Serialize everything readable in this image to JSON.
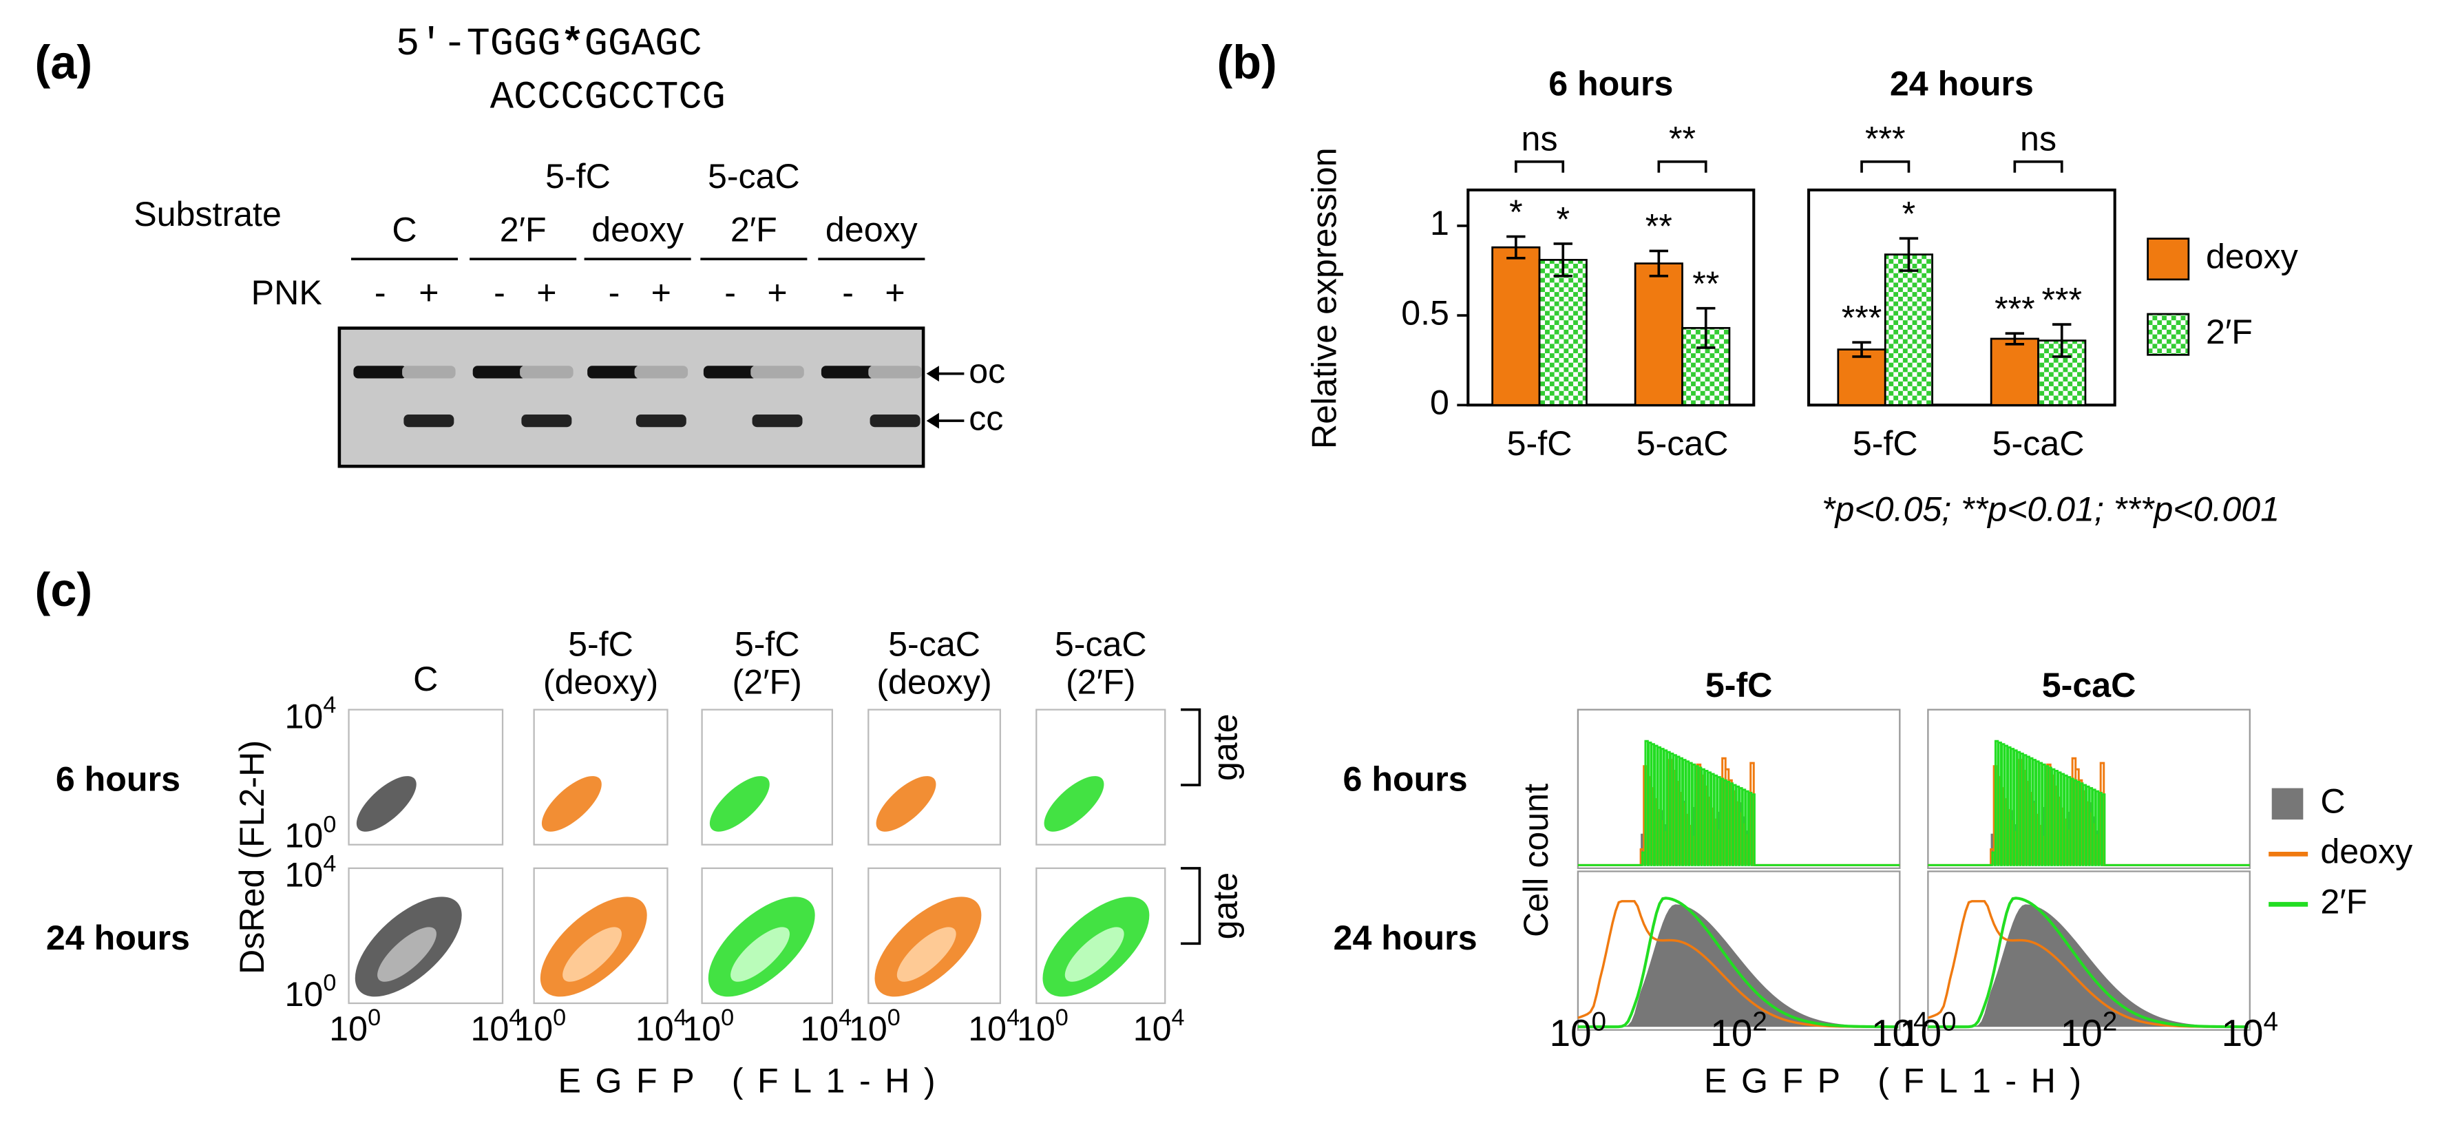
{
  "panel_a": {
    "label": "(a)",
    "seq_top": [
      "5′-TGGG",
      "*",
      "GGAGC"
    ],
    "seq_bottom": "ACCCGCCTCG",
    "group_headers": [
      "5-fC",
      "5-caC"
    ],
    "substrate": "Substrate",
    "lanes": [
      "C",
      "2′F",
      "deoxy",
      "2′F",
      "deoxy"
    ],
    "pnk": "PNK",
    "pnk_signs": [
      "-",
      "+",
      "-",
      "+",
      "-",
      "+",
      "-",
      "+",
      "-",
      "+"
    ],
    "bands": [
      "oc",
      "cc"
    ]
  },
  "panel_b": {
    "label": "(b)",
    "footnote": "*p<0.05; **p<0.01; ***p<0.001"
  },
  "chart_data": [
    {
      "type": "bar",
      "title": "6 hours",
      "y_label": "Relative expression",
      "categories": [
        "5-fC",
        "5-caC"
      ],
      "series": [
        {
          "name": "deoxy",
          "color": "#f07a10",
          "values": [
            0.88,
            0.79
          ],
          "errors": [
            0.06,
            0.07
          ],
          "significance": [
            "*",
            "**"
          ]
        },
        {
          "name": "2′F",
          "color": "#33cc33",
          "values": [
            0.81,
            0.43
          ],
          "errors": [
            0.09,
            0.11
          ],
          "significance": [
            "*",
            "**"
          ]
        }
      ],
      "comparisons": [
        "ns",
        "**"
      ],
      "ylim": [
        0,
        1.2
      ],
      "yticks": [
        0,
        0.5,
        1
      ]
    },
    {
      "type": "bar",
      "title": "24 hours",
      "categories": [
        "5-fC",
        "5-caC"
      ],
      "series": [
        {
          "name": "deoxy",
          "color": "#f07a10",
          "values": [
            0.31,
            0.37
          ],
          "errors": [
            0.04,
            0.03
          ],
          "significance": [
            "***",
            "***"
          ]
        },
        {
          "name": "2′F",
          "color": "#33cc33",
          "values": [
            0.84,
            0.36
          ],
          "errors": [
            0.09,
            0.09
          ],
          "significance": [
            "*",
            "***"
          ]
        }
      ],
      "comparisons": [
        "***",
        "ns"
      ],
      "ylim": [
        0,
        1.2
      ]
    }
  ],
  "panel_c": {
    "label": "(c)",
    "columns": [
      [
        "C"
      ],
      [
        "5-fC",
        "(deoxy)"
      ],
      [
        "5-fC",
        "(2′F)"
      ],
      [
        "5-caC",
        "(deoxy)"
      ],
      [
        "5-caC",
        "(2′F)"
      ]
    ],
    "rows": [
      "6 hours",
      "24 hours"
    ],
    "gate": "gate",
    "y_label": "DsRed (FL2-H)",
    "x_label": "EGFP (FL1-H)",
    "scatter_ticks": [
      {
        "base": "10",
        "exp": "0"
      },
      {
        "base": "10",
        "exp": "4"
      }
    ],
    "hist_titles": [
      "5-fC",
      "5-caC"
    ],
    "hist_y_label": "Cell count",
    "hist_ticks": [
      {
        "base": "10",
        "exp": "0"
      },
      {
        "base": "10",
        "exp": "2"
      },
      {
        "base": "10",
        "exp": "4"
      }
    ],
    "legend": [
      "C",
      "deoxy",
      "2′F"
    ]
  }
}
